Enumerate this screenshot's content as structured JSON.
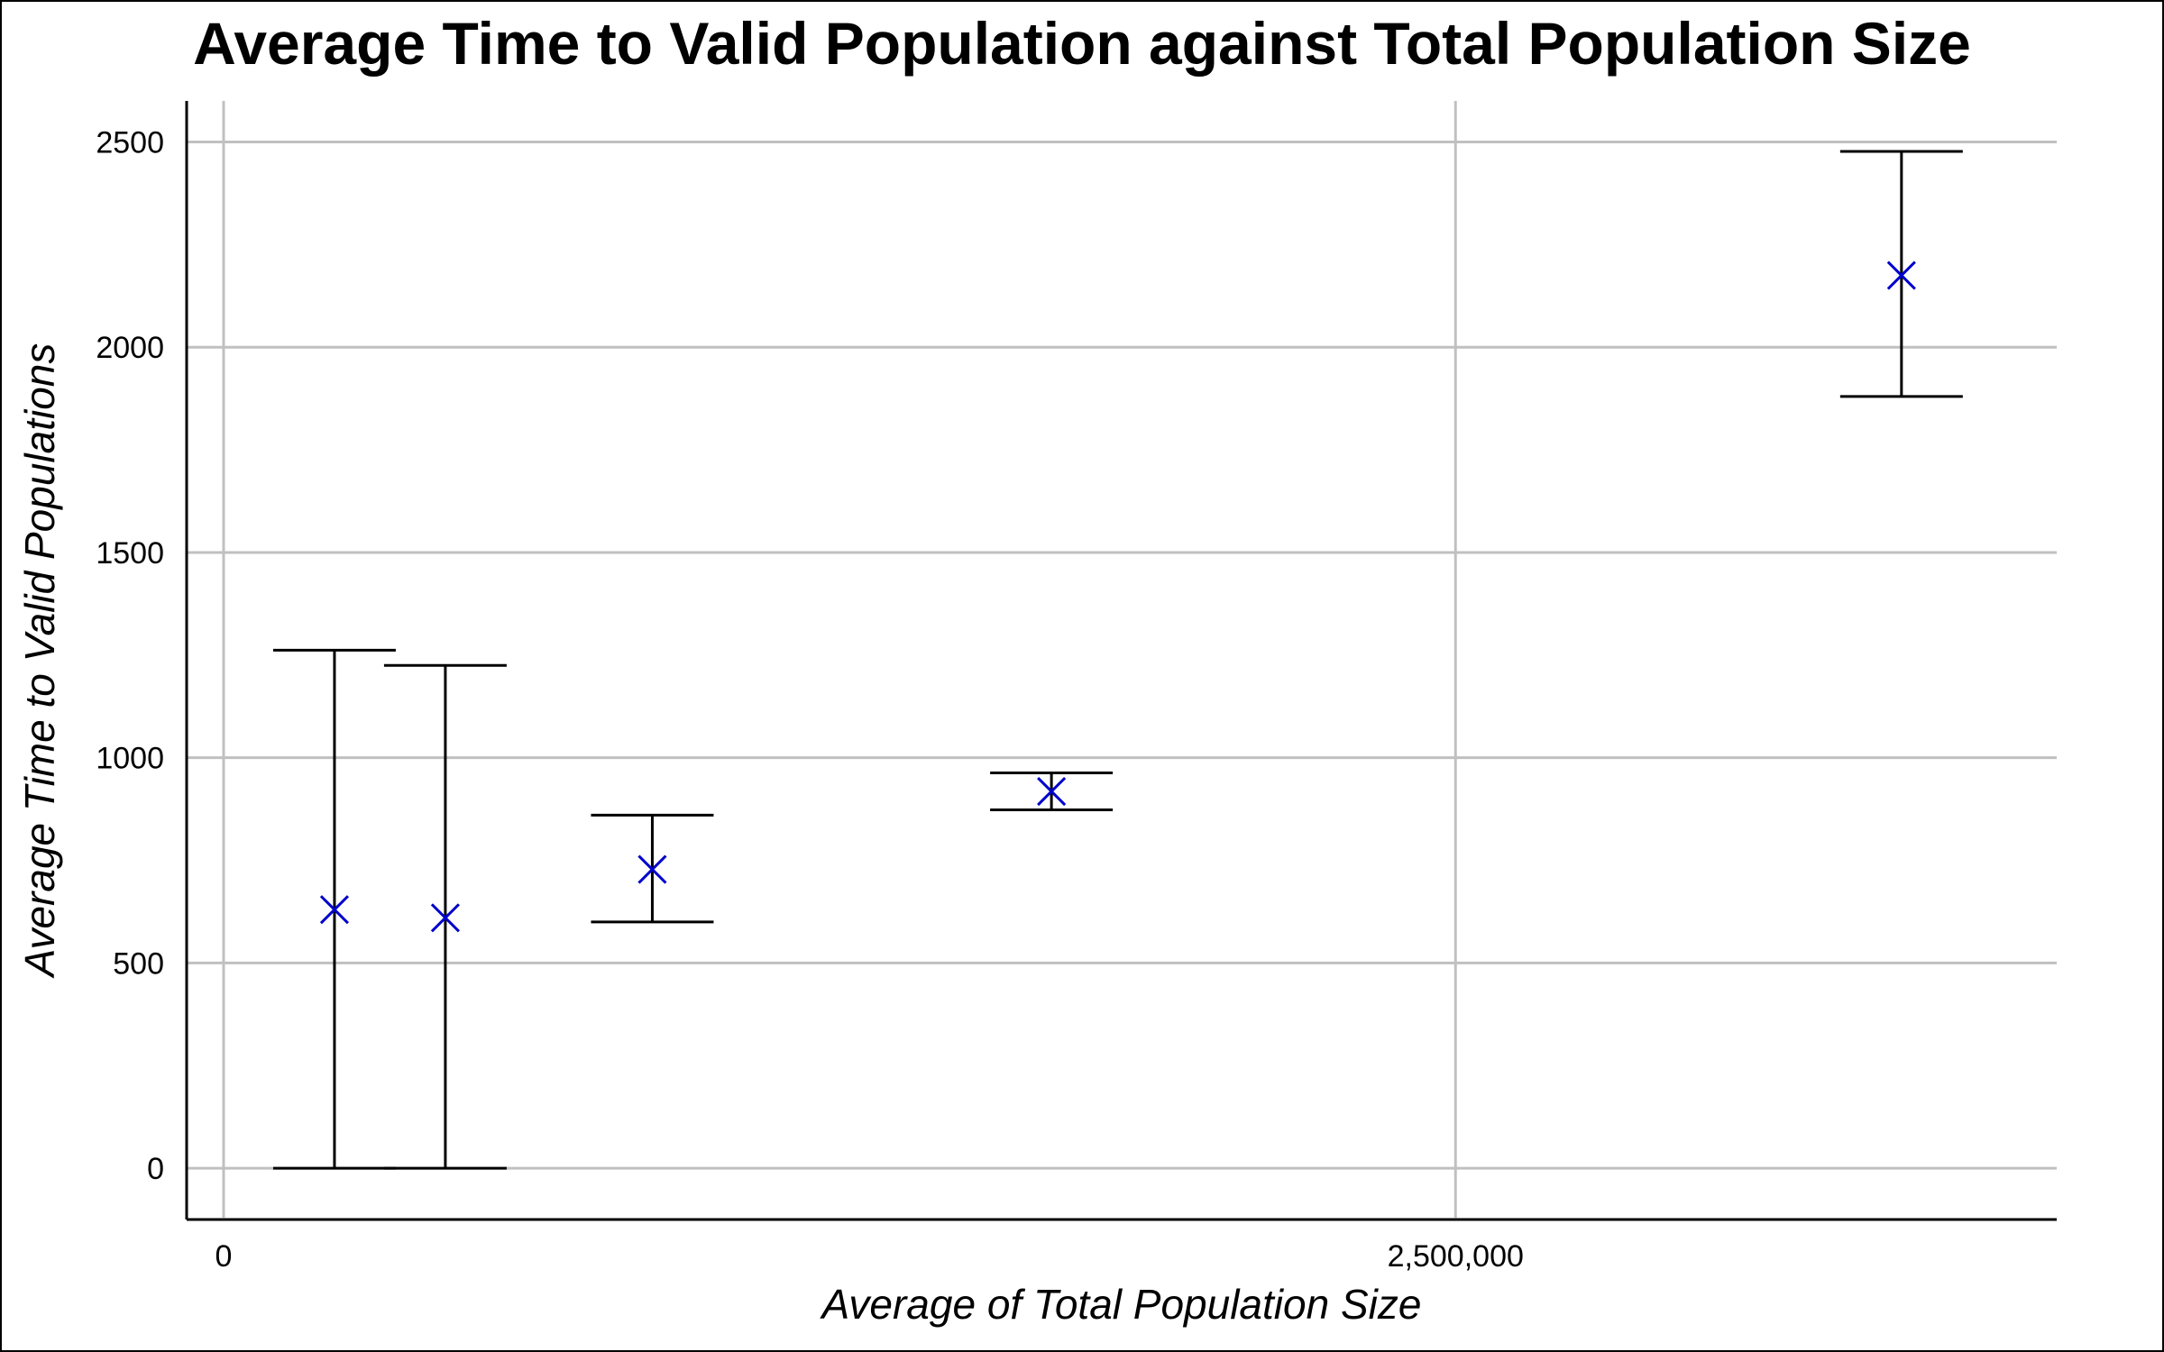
{
  "chart_data": {
    "type": "scatter",
    "title": "Average Time to Valid Population against Total Population Size",
    "xlabel": "Average of Total Population Size",
    "ylabel": "Average Time to Valid Populations",
    "xlim": [
      -75000,
      3720000
    ],
    "ylim": [
      -125,
      2600
    ],
    "x_ticks": [
      0,
      2500000
    ],
    "x_tick_labels": [
      "0",
      "2,500,000"
    ],
    "y_ticks": [
      0,
      500,
      1000,
      1500,
      2000,
      2500
    ],
    "y_tick_labels": [
      "0",
      "500",
      "1000",
      "1500",
      "2000",
      "2500"
    ],
    "grid": true,
    "legend": "none",
    "marker": "x",
    "marker_color": "#0000CC",
    "error_bar_color": "#000000",
    "grid_color": "#C0C0C0",
    "points": [
      {
        "x": 225000,
        "y": 630,
        "y_low": 0,
        "y_high": 1262
      },
      {
        "x": 450000,
        "y": 610,
        "y_low": 0,
        "y_high": 1225
      },
      {
        "x": 870000,
        "y": 728,
        "y_low": 600,
        "y_high": 860
      },
      {
        "x": 1680000,
        "y": 918,
        "y_low": 873,
        "y_high": 963
      },
      {
        "x": 3405000,
        "y": 2175,
        "y_low": 1880,
        "y_high": 2477
      }
    ]
  }
}
